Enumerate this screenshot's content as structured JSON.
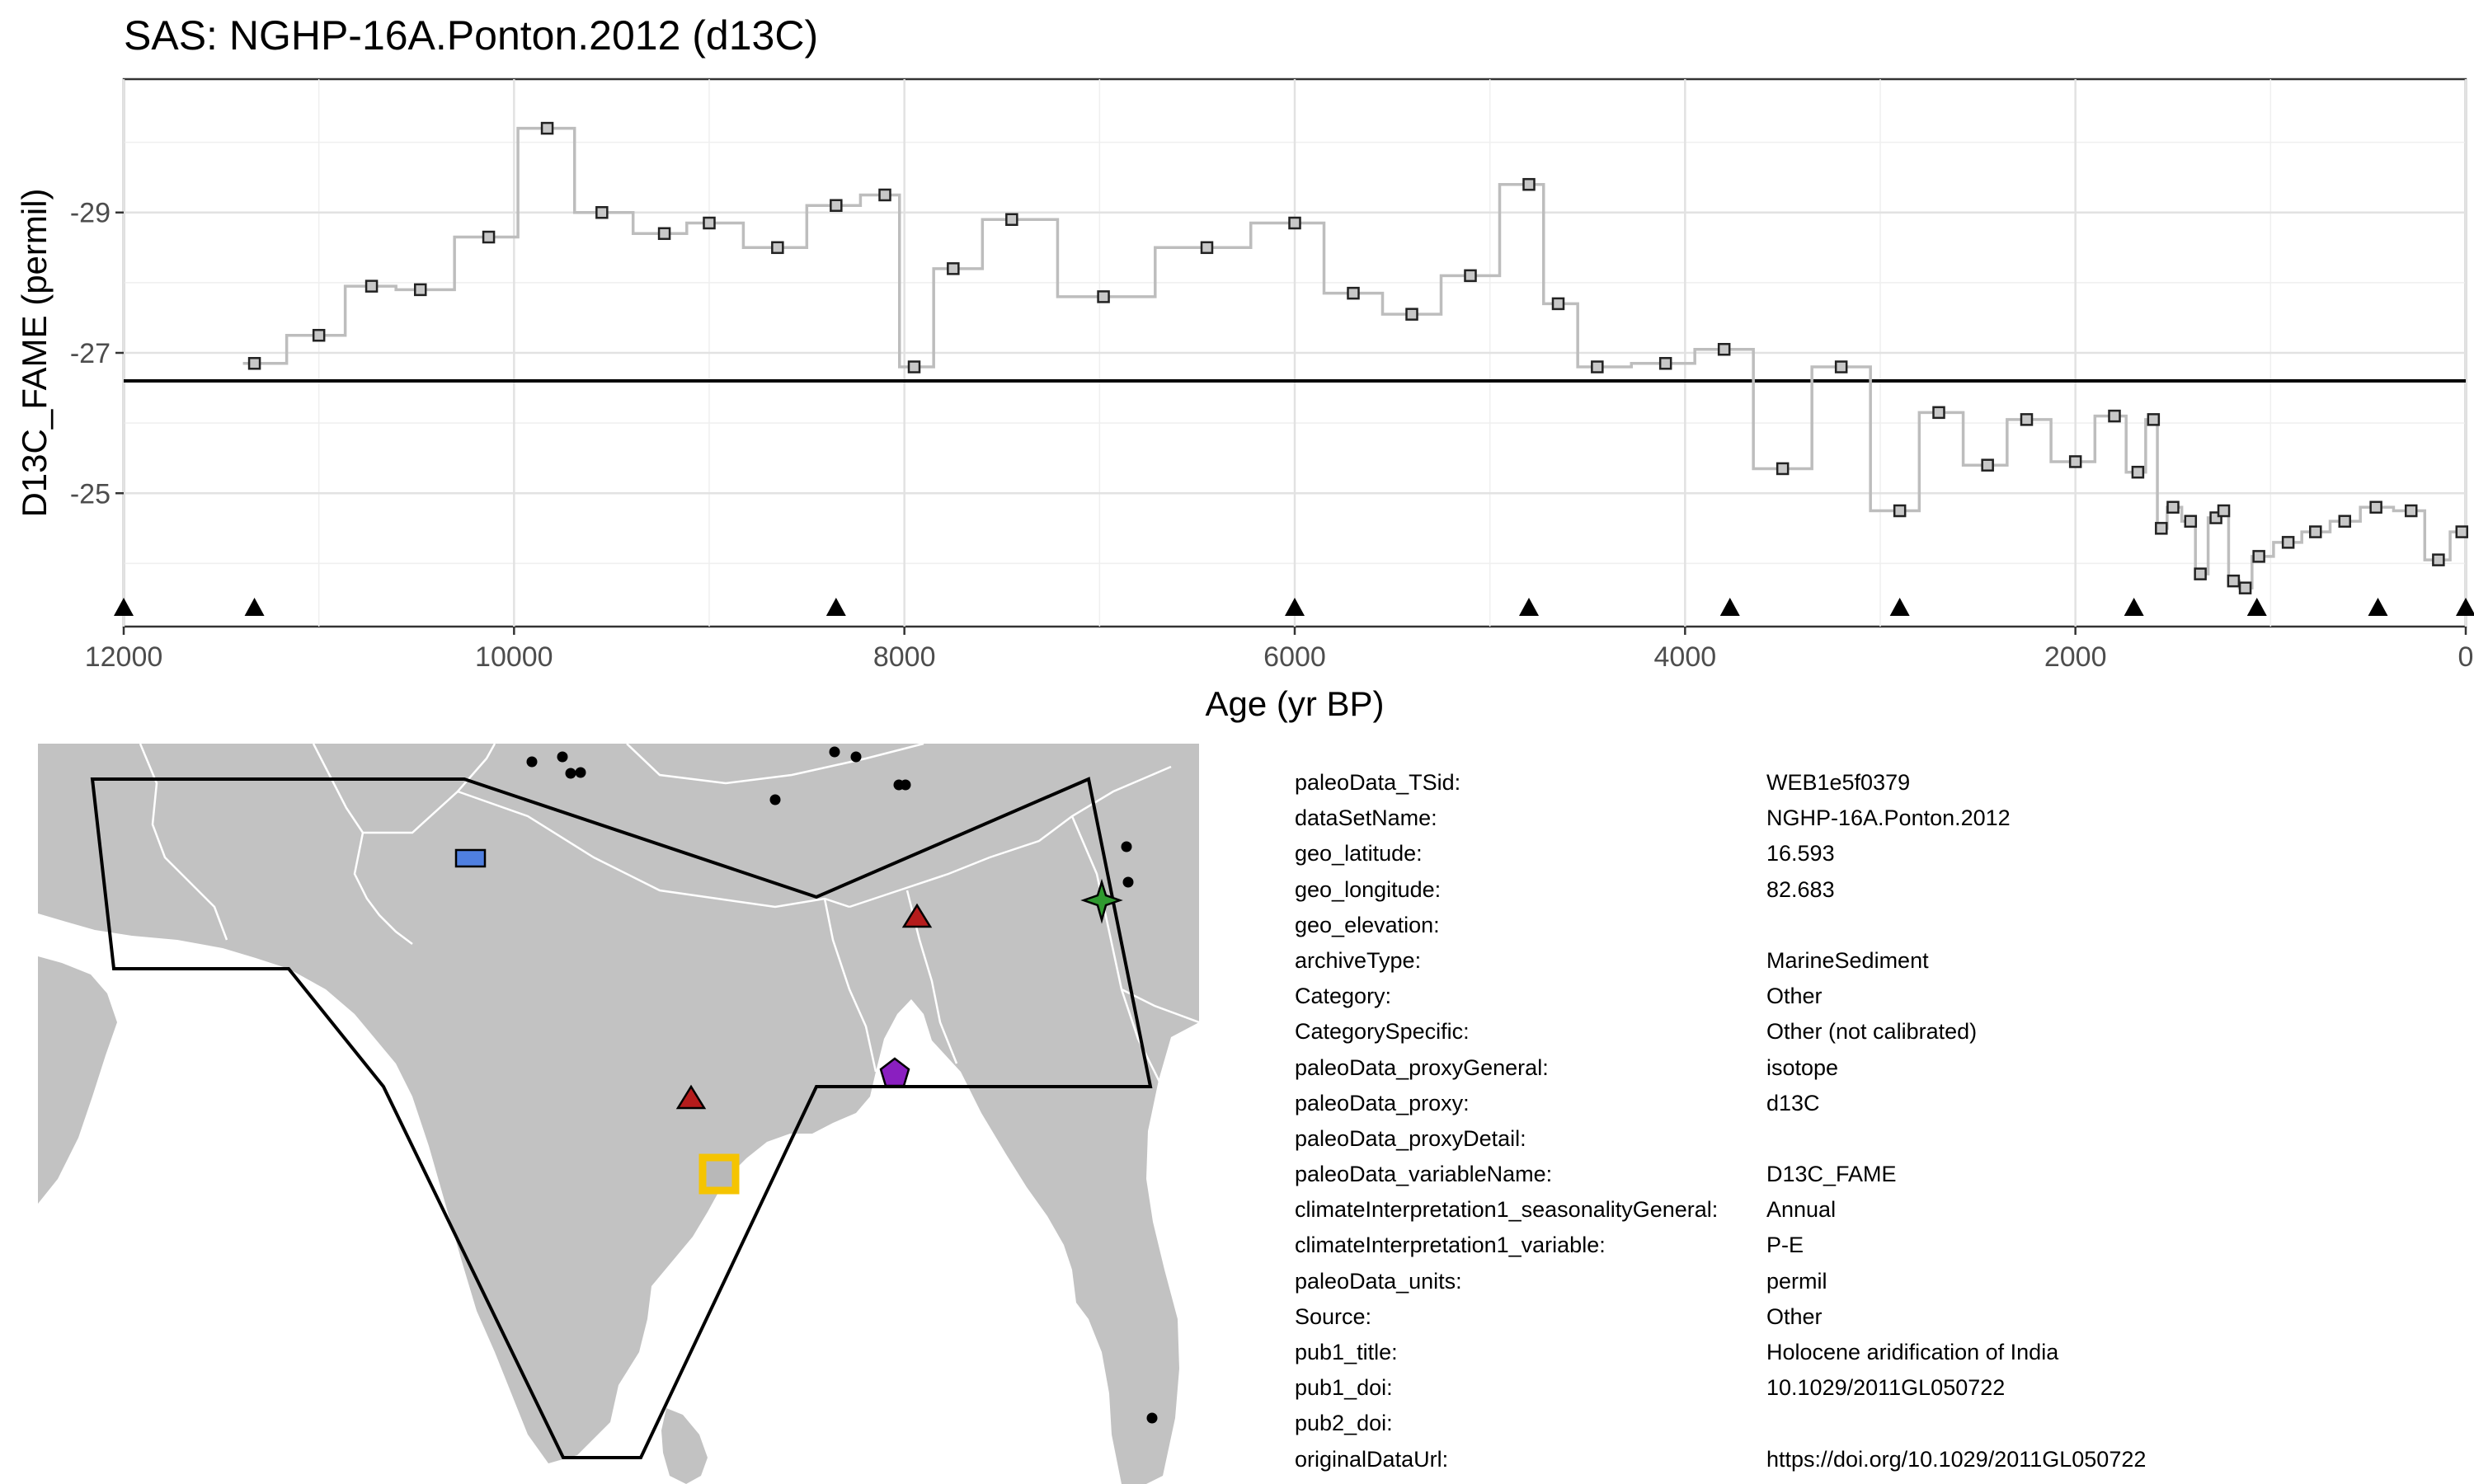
{
  "chart_data": {
    "type": "line",
    "title": "SAS: NGHP-16A.Ponton.2012 (d13C)",
    "xlabel": "Age (yr BP)",
    "ylabel": "D13C_FAME (permil)",
    "xlim": [
      12000,
      0
    ],
    "ylim": [
      -30.9,
      -23.1
    ],
    "x_reversed": true,
    "y_reversed": true,
    "x_ticks": [
      "12000",
      "10000",
      "8000",
      "6000",
      "4000",
      "2000",
      "0"
    ],
    "y_ticks": [
      "-29",
      "-27",
      "-25"
    ],
    "reference_line_y": -26.6,
    "series": [
      {
        "style": "step",
        "x": [
          11330,
          11000,
          10730,
          10480,
          10130,
          9830,
          9550,
          9230,
          9000,
          8650,
          8350,
          8100,
          7950,
          7750,
          7450,
          6980,
          6450,
          6000,
          5700,
          5400,
          5100,
          4800,
          4650,
          4450,
          4100,
          3800,
          3500,
          3200,
          2900,
          2700,
          2450,
          2250,
          2000,
          1800,
          1680,
          1600,
          1560,
          1500,
          1410,
          1360,
          1280,
          1240,
          1190,
          1130,
          1060,
          910,
          770,
          620,
          460,
          280,
          140,
          20
        ],
        "y": [
          -26.85,
          -27.25,
          -27.95,
          -27.9,
          -28.65,
          -30.2,
          -29.0,
          -28.7,
          -28.85,
          -28.5,
          -29.1,
          -29.25,
          -26.8,
          -28.2,
          -28.9,
          -27.8,
          -28.5,
          -28.85,
          -27.85,
          -27.55,
          -28.1,
          -29.4,
          -27.7,
          -26.8,
          -26.85,
          -27.05,
          -25.35,
          -26.8,
          -24.75,
          -26.15,
          -25.4,
          -26.05,
          -25.45,
          -26.1,
          -25.3,
          -26.05,
          -24.5,
          -24.8,
          -24.6,
          -23.85,
          -24.65,
          -24.75,
          -23.75,
          -23.65,
          -24.1,
          -24.3,
          -24.45,
          -24.6,
          -24.8,
          -24.75,
          -24.05,
          -24.45
        ]
      },
      {
        "style": "triangle-markers",
        "x": [
          12000,
          11330,
          8350,
          6000,
          4800,
          3770,
          2900,
          1700,
          1070,
          450,
          0
        ]
      }
    ]
  },
  "metadata": [
    {
      "key": "paleoData_TSid:",
      "value": "WEB1e5f0379"
    },
    {
      "key": "dataSetName:",
      "value": "NGHP-16A.Ponton.2012"
    },
    {
      "key": "geo_latitude:",
      "value": "16.593"
    },
    {
      "key": "geo_longitude:",
      "value": "82.683"
    },
    {
      "key": "geo_elevation:",
      "value": ""
    },
    {
      "key": "archiveType:",
      "value": "MarineSediment"
    },
    {
      "key": "Category:",
      "value": "Other"
    },
    {
      "key": "CategorySpecific:",
      "value": "Other (not calibrated)"
    },
    {
      "key": "paleoData_proxyGeneral:",
      "value": "isotope"
    },
    {
      "key": "paleoData_proxy:",
      "value": "d13C"
    },
    {
      "key": "paleoData_proxyDetail:",
      "value": ""
    },
    {
      "key": "paleoData_variableName:",
      "value": "D13C_FAME"
    },
    {
      "key": "climateInterpretation1_seasonalityGeneral:",
      "value": "Annual"
    },
    {
      "key": "climateInterpretation1_variable:",
      "value": "P-E"
    },
    {
      "key": "paleoData_units:",
      "value": "permil"
    },
    {
      "key": "Source:",
      "value": "Other"
    },
    {
      "key": "pub1_title:",
      "value": "Holocene aridification of India"
    },
    {
      "key": "pub1_doi:",
      "value": "10.1029/2011GL050722"
    },
    {
      "key": "pub2_doi:",
      "value": ""
    },
    {
      "key": "originalDataUrl:",
      "value": "https://doi.org/10.1029/2011GL050722"
    }
  ],
  "map": {
    "land_color": "#c2c2c2",
    "border_color": "#ffffff",
    "region_outline_color": "#000000",
    "highlight_site_color": "#f5c400",
    "markers": [
      {
        "shape": "rectangle",
        "color": "#4f7fe0"
      },
      {
        "shape": "triangle",
        "color": "#b51c1c"
      },
      {
        "shape": "triangle",
        "color": "#b51c1c"
      },
      {
        "shape": "star",
        "color": "#2f9a2f"
      },
      {
        "shape": "pentagon",
        "color": "#8a1fc0"
      },
      {
        "shape": "highlight-square",
        "color": "#f5c400"
      }
    ]
  }
}
